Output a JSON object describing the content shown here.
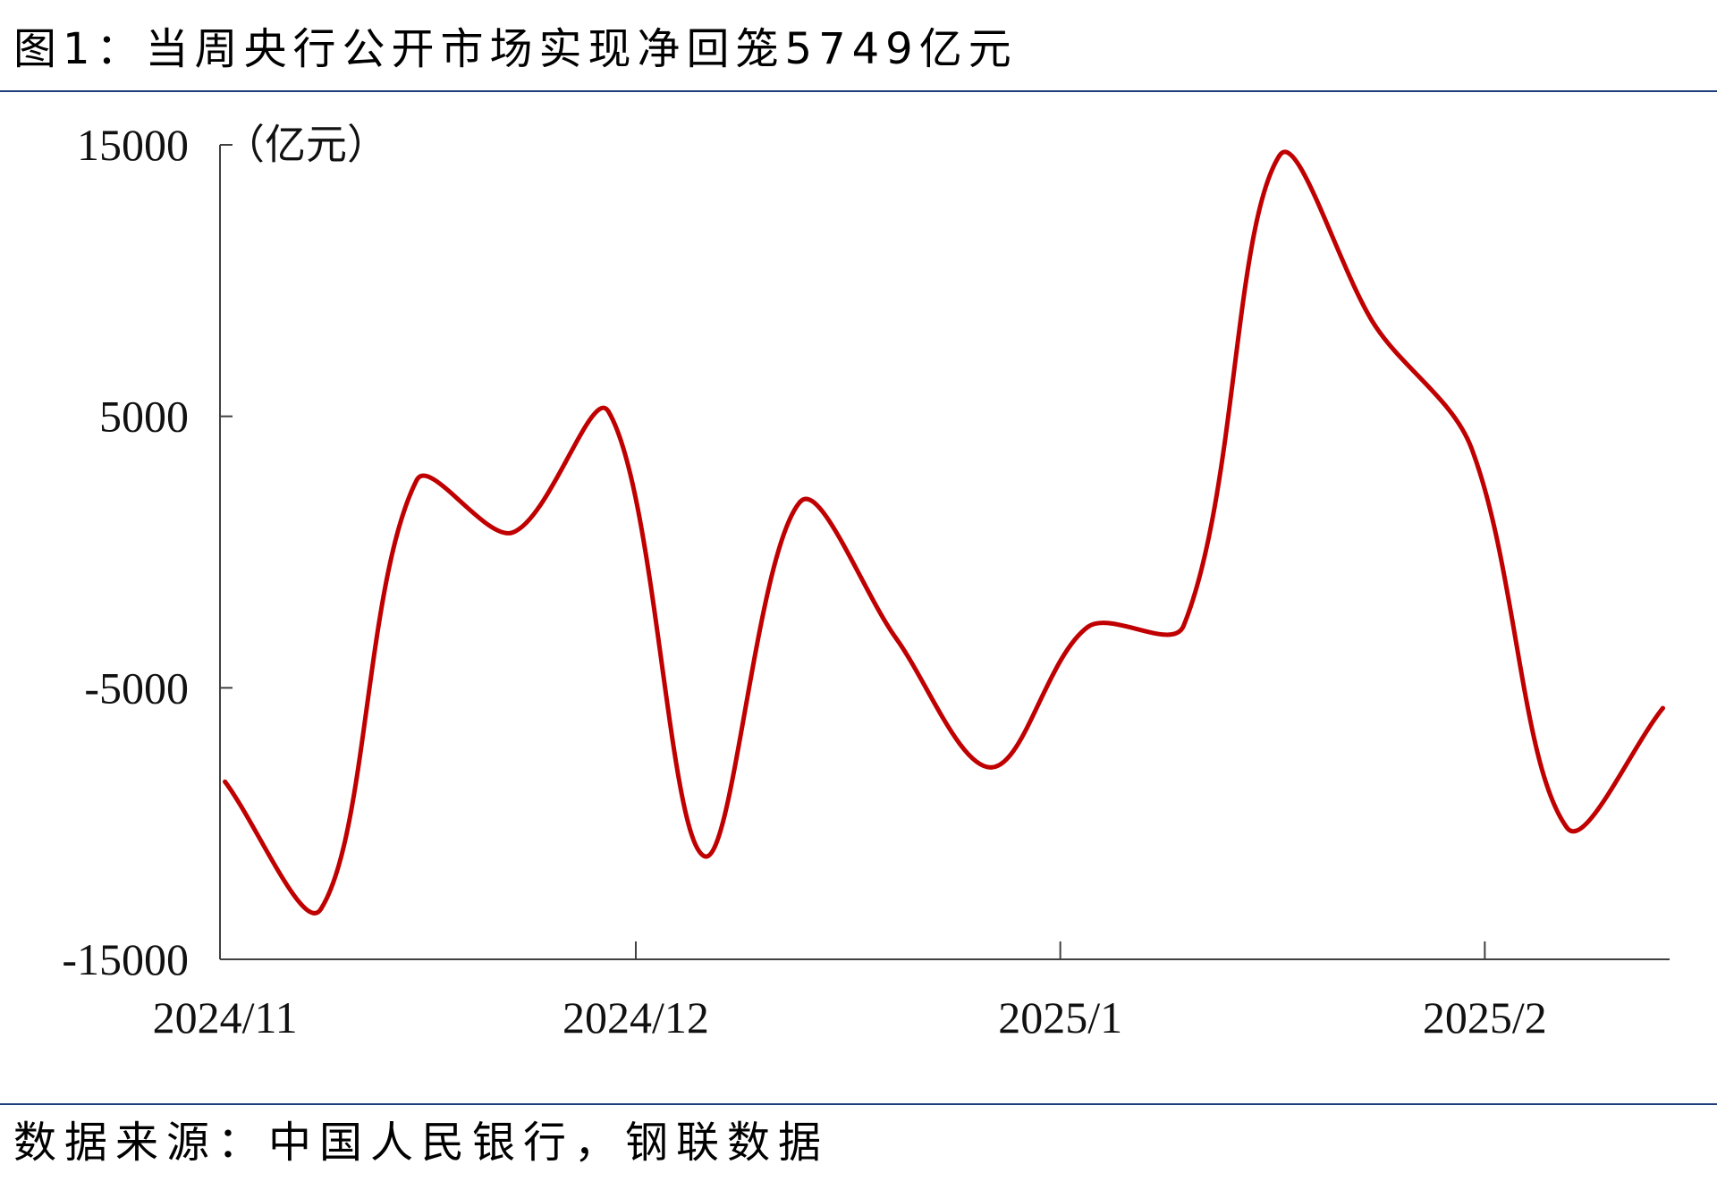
{
  "colors": {
    "rule": "#1f3d7a",
    "axis": "#404040"
  },
  "source": "数据来源：中国人民银行，钢联数据",
  "chart_data": {
    "type": "line",
    "title": "图1：当周央行公开市场实现净回笼5749亿元",
    "ylabel": "（亿元）",
    "ylim": [
      -15000,
      15000
    ],
    "ytick_labels": [
      "15000",
      "5000",
      "-5000",
      "-15000"
    ],
    "xlim": [
      "2024-11-01",
      "2025-02-14"
    ],
    "xtick_labels": [
      "2024/11",
      "2024/12",
      "2025/1",
      "2025/2"
    ],
    "grid": false,
    "legend": "none",
    "smooth": true,
    "x": [
      "2024-11-01",
      "2024-11-08",
      "2024-11-15",
      "2024-11-22",
      "2024-11-29",
      "2024-12-06",
      "2024-12-13",
      "2024-12-20",
      "2024-12-27",
      "2025-01-03",
      "2025-01-10",
      "2025-01-17",
      "2025-01-24",
      "2025-01-31",
      "2025-02-07",
      "2025-02-14"
    ],
    "series": [
      {
        "color": "#c00000",
        "values": [
          -8460,
          -13150,
          2650,
          720,
          5180,
          -11200,
          1850,
          -3170,
          -7930,
          -2760,
          -2720,
          14600,
          8330,
          3860,
          -10150,
          -5749
        ]
      }
    ]
  }
}
